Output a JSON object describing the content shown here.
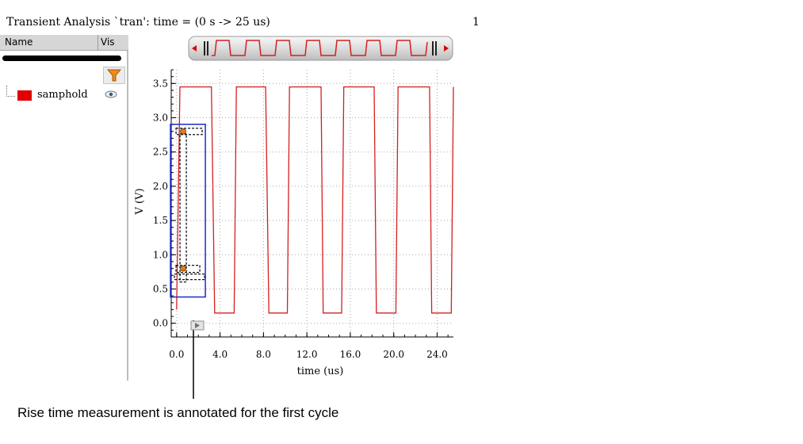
{
  "header": {
    "title": "Transient Analysis `tran': time = (0 s -> 25 us)",
    "page_number": "1"
  },
  "signal_panel": {
    "columns": [
      "Name",
      "Vis"
    ],
    "signals": [
      {
        "name": "samphold",
        "color": "#e00000",
        "visibility_icon": "eye-icon"
      }
    ],
    "filter_icon": "filter-icon"
  },
  "navigator": {
    "left_arrow": "scroll-left-icon",
    "right_arrow": "scroll-right-icon"
  },
  "caption": "Rise time measurement is annotated for the first cycle",
  "chart_data": {
    "type": "line",
    "xlabel": "time (us)",
    "ylabel": "V (V)",
    "xlim": [
      -0.5,
      25.5
    ],
    "ylim": [
      -0.2,
      3.7
    ],
    "xticks": [
      0.0,
      4.0,
      8.0,
      12.0,
      16.0,
      20.0,
      24.0
    ],
    "xtick_labels": [
      "0.0",
      "4.0",
      "8.0",
      "12.0",
      "16.0",
      "20.0",
      "24.0"
    ],
    "yticks": [
      0.0,
      0.5,
      1.0,
      1.5,
      2.0,
      2.5,
      3.0,
      3.5
    ],
    "ytick_labels": [
      "0.0",
      "0.5",
      "1.0",
      "1.5",
      "2.0",
      "2.5",
      "3.0",
      "3.5"
    ],
    "grid": true,
    "series": [
      {
        "name": "samphold",
        "color": "#d42020",
        "x": [
          0.0,
          0.3,
          3.2,
          3.5,
          5.3,
          5.5,
          8.2,
          8.5,
          10.2,
          10.4,
          13.3,
          13.5,
          15.2,
          15.4,
          18.2,
          18.4,
          20.2,
          20.4,
          23.3,
          23.5,
          25.3,
          25.5
        ],
        "y": [
          0.2,
          3.45,
          3.45,
          0.15,
          0.15,
          3.45,
          3.45,
          0.15,
          0.15,
          3.45,
          3.45,
          0.15,
          0.15,
          3.45,
          3.45,
          0.15,
          0.15,
          3.45,
          3.45,
          0.15,
          0.15,
          3.45
        ]
      }
    ],
    "rise_time_annotation": {
      "x": 0.6,
      "y_low": 0.8,
      "y_high": 2.8
    }
  }
}
